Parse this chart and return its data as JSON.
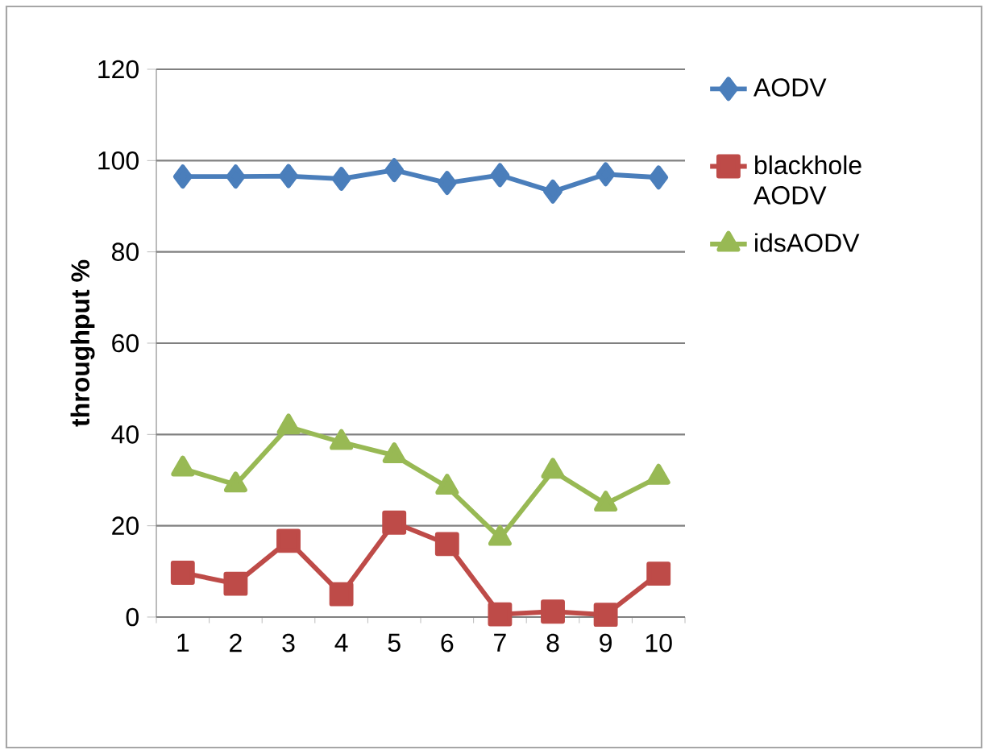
{
  "chart_data": {
    "type": "line",
    "ylabel": "throughput %",
    "categories": [
      "1",
      "2",
      "3",
      "4",
      "5",
      "6",
      "7",
      "8",
      "9",
      "10"
    ],
    "series": [
      {
        "name": "AODV",
        "color": "#4a7ebb",
        "marker": "diamond",
        "values": [
          96.5,
          96.5,
          96.6,
          96.0,
          97.9,
          95.1,
          96.8,
          93.2,
          97.0,
          96.3
        ]
      },
      {
        "name": "blackhole AODV",
        "color": "#be4b48",
        "marker": "square",
        "values": [
          9.7,
          7.3,
          16.7,
          5.0,
          20.7,
          16.0,
          0.6,
          1.2,
          0.5,
          9.5
        ]
      },
      {
        "name": "idsAODV",
        "color": "#98b954",
        "marker": "triangle",
        "values": [
          32.5,
          29.0,
          41.7,
          38.3,
          35.4,
          28.5,
          17.3,
          32.0,
          24.8,
          30.7
        ]
      }
    ],
    "ylim": [
      0,
      120
    ],
    "yticks": [
      0,
      20,
      40,
      60,
      80,
      100,
      120
    ],
    "grid": "y",
    "legend": "right"
  }
}
